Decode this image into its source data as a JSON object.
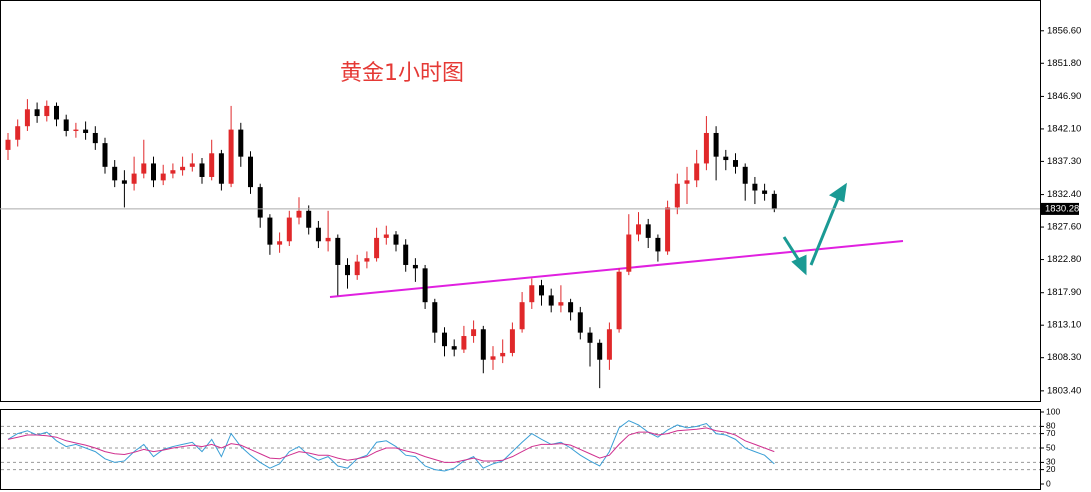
{
  "chart_data": [
    {
      "type": "candlestick",
      "title": "黄金1小时图",
      "ylim": [
        1801.9,
        1861.0
      ],
      "yticks": [
        {
          "value": 1803.4,
          "label": "1803.40"
        },
        {
          "value": 1808.3,
          "label": "1808.30"
        },
        {
          "value": 1813.1,
          "label": "1813.10"
        },
        {
          "value": 1817.9,
          "label": "1817.90"
        },
        {
          "value": 1822.8,
          "label": "1822.80"
        },
        {
          "value": 1827.6,
          "label": "1827.60"
        },
        {
          "value": 1832.4,
          "label": "1832.40"
        },
        {
          "value": 1837.3,
          "label": "1837.30"
        },
        {
          "value": 1842.1,
          "label": "1842.10"
        },
        {
          "value": 1846.9,
          "label": "1846.90"
        },
        {
          "value": 1851.8,
          "label": "1851.80"
        },
        {
          "value": 1856.6,
          "label": "1856.60"
        }
      ],
      "current_price": {
        "value": 1830.28,
        "label": "1830.28"
      },
      "up_color": "#e0282a",
      "down_color": "#000000",
      "open": [
        1839.0,
        1840.5,
        1842.5,
        1845.0,
        1844.0,
        1845.5,
        1843.5,
        1841.8,
        1842.0,
        1841.5,
        1840.0,
        1836.5,
        1834.5,
        1834.0,
        1835.5,
        1837.0,
        1834.5,
        1835.5,
        1836.0,
        1836.5,
        1837.0,
        1835.0,
        1838.5,
        1834.0,
        1842.0,
        1838.0,
        1833.5,
        1829.0,
        1825.0,
        1825.5,
        1829.0,
        1830.0,
        1827.5,
        1825.5,
        1826.0,
        1822.0,
        1820.5,
        1822.5,
        1823.0,
        1826.0,
        1826.5,
        1825.0,
        1822.0,
        1821.5,
        1816.5,
        1812.0,
        1810.0,
        1809.5,
        1811.5,
        1812.5,
        1808.0,
        1808.5,
        1809.0,
        1812.5,
        1816.5,
        1819.0,
        1817.5,
        1816.0,
        1816.5,
        1815.0,
        1812.0,
        1810.5,
        1808.0,
        1812.5,
        1821.0,
        1826.5,
        1828.0,
        1826.0,
        1824.0,
        1830.5,
        1834.0,
        1834.5,
        1837.0,
        1841.5,
        1838.0,
        1837.5,
        1836.5,
        1834.0,
        1833.0,
        1832.5
      ],
      "high": [
        1841.5,
        1843.5,
        1846.5,
        1846.0,
        1846.3,
        1846.0,
        1844.2,
        1843.0,
        1843.2,
        1842.5,
        1840.8,
        1837.5,
        1836.0,
        1838.0,
        1840.5,
        1838.0,
        1836.8,
        1837.0,
        1838.0,
        1838.5,
        1837.8,
        1840.5,
        1839.0,
        1845.5,
        1843.0,
        1838.8,
        1834.0,
        1829.5,
        1826.8,
        1830.0,
        1832.0,
        1830.8,
        1828.5,
        1830.0,
        1826.5,
        1823.0,
        1823.5,
        1824.0,
        1827.5,
        1827.8,
        1827.0,
        1825.8,
        1823.0,
        1822.0,
        1817.0,
        1812.8,
        1811.0,
        1813.0,
        1813.8,
        1813.0,
        1810.0,
        1811.0,
        1813.5,
        1818.0,
        1820.0,
        1819.8,
        1818.5,
        1819.0,
        1817.0,
        1815.8,
        1812.8,
        1811.0,
        1813.5,
        1821.5,
        1829.5,
        1829.8,
        1828.8,
        1826.5,
        1831.5,
        1835.5,
        1836.5,
        1839.0,
        1844.0,
        1842.5,
        1839.0,
        1838.5,
        1837.0,
        1835.0,
        1834.0,
        1833.0
      ],
      "low": [
        1837.5,
        1839.5,
        1841.8,
        1843.0,
        1843.2,
        1842.5,
        1841.0,
        1840.8,
        1840.5,
        1839.0,
        1835.5,
        1833.5,
        1830.5,
        1833.0,
        1834.8,
        1833.5,
        1833.8,
        1834.8,
        1835.2,
        1835.8,
        1834.0,
        1834.5,
        1833.0,
        1833.5,
        1836.5,
        1832.5,
        1827.5,
        1823.5,
        1823.8,
        1824.8,
        1828.0,
        1826.5,
        1824.5,
        1824.0,
        1817.5,
        1818.5,
        1819.8,
        1821.5,
        1822.5,
        1825.0,
        1824.0,
        1821.0,
        1819.5,
        1815.5,
        1810.5,
        1808.5,
        1808.5,
        1809.0,
        1810.5,
        1806.0,
        1806.5,
        1807.5,
        1808.5,
        1812.0,
        1815.5,
        1816.0,
        1815.0,
        1815.0,
        1813.8,
        1811.0,
        1807.0,
        1803.8,
        1806.5,
        1812.0,
        1820.5,
        1825.5,
        1824.5,
        1822.5,
        1823.5,
        1829.5,
        1831.0,
        1833.5,
        1836.0,
        1834.5,
        1836.0,
        1835.5,
        1831.5,
        1831.0,
        1831.5,
        1829.8
      ],
      "close": [
        1840.5,
        1842.5,
        1845.0,
        1844.0,
        1845.5,
        1843.5,
        1841.8,
        1842.0,
        1841.5,
        1840.0,
        1836.5,
        1834.5,
        1834.0,
        1835.5,
        1837.0,
        1834.5,
        1835.5,
        1836.0,
        1836.5,
        1837.0,
        1835.0,
        1838.5,
        1834.0,
        1842.0,
        1838.0,
        1833.5,
        1829.0,
        1825.0,
        1825.5,
        1829.0,
        1830.0,
        1827.5,
        1825.5,
        1826.0,
        1822.0,
        1820.5,
        1822.5,
        1823.0,
        1826.0,
        1826.5,
        1825.0,
        1822.0,
        1821.5,
        1816.5,
        1812.0,
        1810.0,
        1809.5,
        1811.5,
        1812.5,
        1808.0,
        1808.5,
        1809.0,
        1812.5,
        1816.5,
        1819.0,
        1817.5,
        1816.0,
        1816.5,
        1815.0,
        1812.0,
        1810.5,
        1808.0,
        1812.5,
        1821.0,
        1826.5,
        1828.0,
        1826.0,
        1824.0,
        1830.5,
        1834.0,
        1834.5,
        1837.0,
        1841.5,
        1838.0,
        1837.5,
        1836.5,
        1834.0,
        1833.0,
        1832.5,
        1830.28
      ]
    },
    {
      "type": "line",
      "ylim": [
        0,
        100
      ],
      "yticks": [
        0,
        20,
        30,
        50,
        70,
        80,
        100
      ],
      "series": [
        {
          "color": "#3a9fd6",
          "values": [
            62,
            70,
            74,
            68,
            72,
            60,
            52,
            55,
            50,
            45,
            35,
            30,
            32,
            45,
            55,
            38,
            48,
            52,
            55,
            58,
            45,
            62,
            38,
            70,
            52,
            40,
            30,
            22,
            28,
            45,
            52,
            40,
            33,
            38,
            25,
            22,
            35,
            40,
            58,
            60,
            52,
            40,
            38,
            25,
            20,
            18,
            22,
            32,
            38,
            22,
            28,
            32,
            45,
            58,
            70,
            62,
            55,
            58,
            50,
            40,
            32,
            25,
            45,
            78,
            88,
            82,
            72,
            65,
            75,
            82,
            78,
            80,
            84,
            70,
            68,
            62,
            50,
            45,
            40,
            28
          ]
        },
        {
          "color": "#d0308f",
          "values": [
            62,
            65,
            68,
            68,
            67,
            65,
            60,
            57,
            54,
            50,
            45,
            42,
            41,
            44,
            48,
            45,
            47,
            50,
            52,
            54,
            52,
            55,
            50,
            56,
            54,
            48,
            42,
            36,
            35,
            40,
            45,
            43,
            40,
            40,
            36,
            33,
            35,
            38,
            45,
            50,
            50,
            46,
            43,
            38,
            34,
            30,
            30,
            33,
            36,
            32,
            32,
            33,
            38,
            45,
            52,
            55,
            55,
            56,
            54,
            48,
            42,
            36,
            40,
            55,
            68,
            72,
            72,
            68,
            70,
            74,
            75,
            76,
            78,
            74,
            72,
            68,
            60,
            55,
            50,
            45
          ]
        }
      ]
    }
  ]
}
